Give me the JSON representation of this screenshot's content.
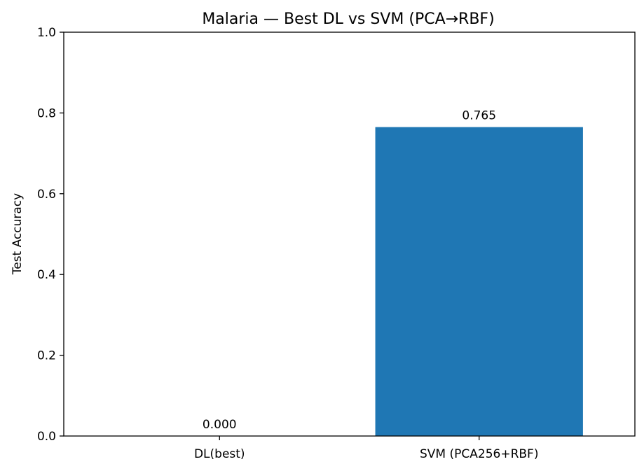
{
  "chart_data": {
    "type": "bar",
    "title": "Malaria — Best DL vs SVM (PCA→RBF)",
    "xlabel": "",
    "ylabel": "Test Accuracy",
    "categories": [
      "DL(best)",
      "SVM (PCA256+RBF)"
    ],
    "values": [
      0.0,
      0.765
    ],
    "data_labels": [
      "0.000",
      "0.765"
    ],
    "ylim": [
      0,
      1.0
    ],
    "yticks": [
      0.0,
      0.2,
      0.4,
      0.6,
      0.8,
      1.0
    ],
    "ytick_labels": [
      "0.0",
      "0.2",
      "0.4",
      "0.6",
      "0.8",
      "1.0"
    ],
    "bar_color": "#1f77b4",
    "grid": false,
    "legend": "none"
  }
}
